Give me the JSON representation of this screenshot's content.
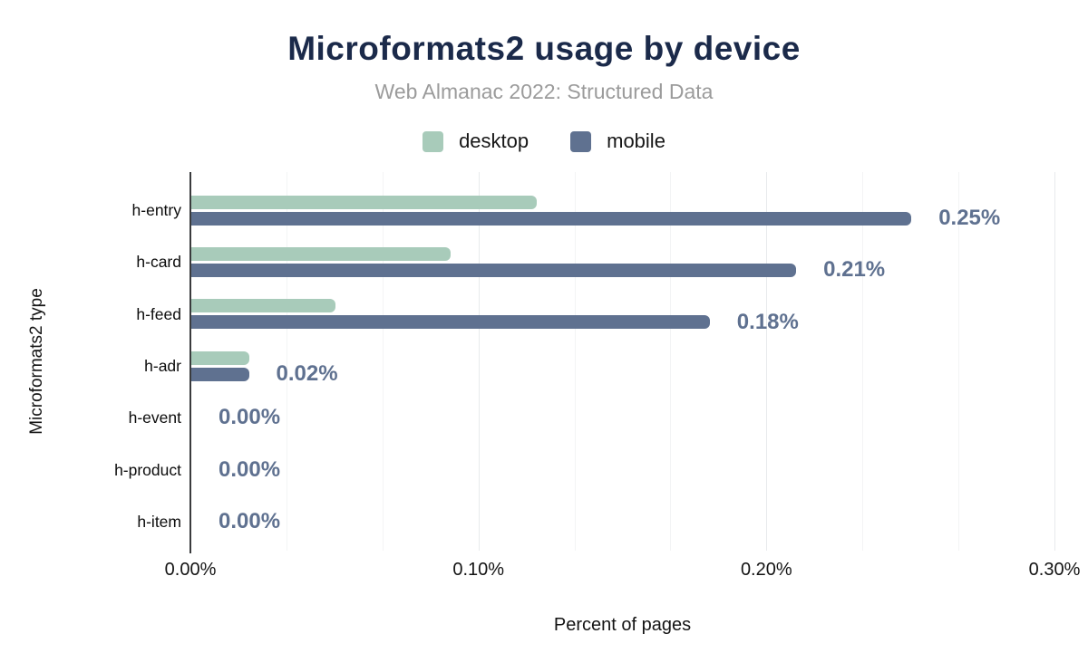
{
  "header": {
    "title": "Microformats2 usage by device",
    "subtitle": "Web Almanac 2022: Structured Data"
  },
  "legend": {
    "items": [
      {
        "label": "desktop",
        "color": "#a8cbba"
      },
      {
        "label": "mobile",
        "color": "#5f7190"
      }
    ]
  },
  "chart_data": {
    "type": "bar",
    "orientation": "horizontal",
    "title": "Microformats2 usage by device",
    "subtitle": "Web Almanac 2022: Structured Data",
    "categories": [
      "h-entry",
      "h-card",
      "h-feed",
      "h-adr",
      "h-event",
      "h-product",
      "h-item"
    ],
    "series": [
      {
        "name": "desktop",
        "color": "#a8cbba",
        "values": [
          0.12,
          0.09,
          0.05,
          0.02,
          0,
          0,
          0
        ]
      },
      {
        "name": "mobile",
        "color": "#5f7190",
        "values": [
          0.25,
          0.21,
          0.18,
          0.02,
          0,
          0,
          0
        ]
      }
    ],
    "value_labels": {
      "attached_to_series": "mobile",
      "texts": [
        "0.25%",
        "0.21%",
        "0.18%",
        "0.02%",
        "0.00%",
        "0.00%",
        "0.00%"
      ],
      "color": "#5f7190"
    },
    "xlabel": "Percent of pages",
    "ylabel": "Microformats2 type",
    "xlim": [
      0,
      0.3
    ],
    "xtick_labels": [
      "0.00%",
      "0.10%",
      "0.20%",
      "0.30%"
    ],
    "grid": {
      "vertical": true,
      "minor_subdivisions_per_major": 3,
      "legend_position": "top"
    }
  },
  "colors": {
    "title": "#1b2a4a",
    "subtitle": "#9b9b9b",
    "desktop_bar": "#a8cbba",
    "mobile_bar": "#5f7190",
    "value_label": "#5f7190",
    "axis_line": "#3a3b3d",
    "gridline_major": "#e8eaec",
    "gridline_minor": "#f3f4f5",
    "background": "#ffffff"
  }
}
